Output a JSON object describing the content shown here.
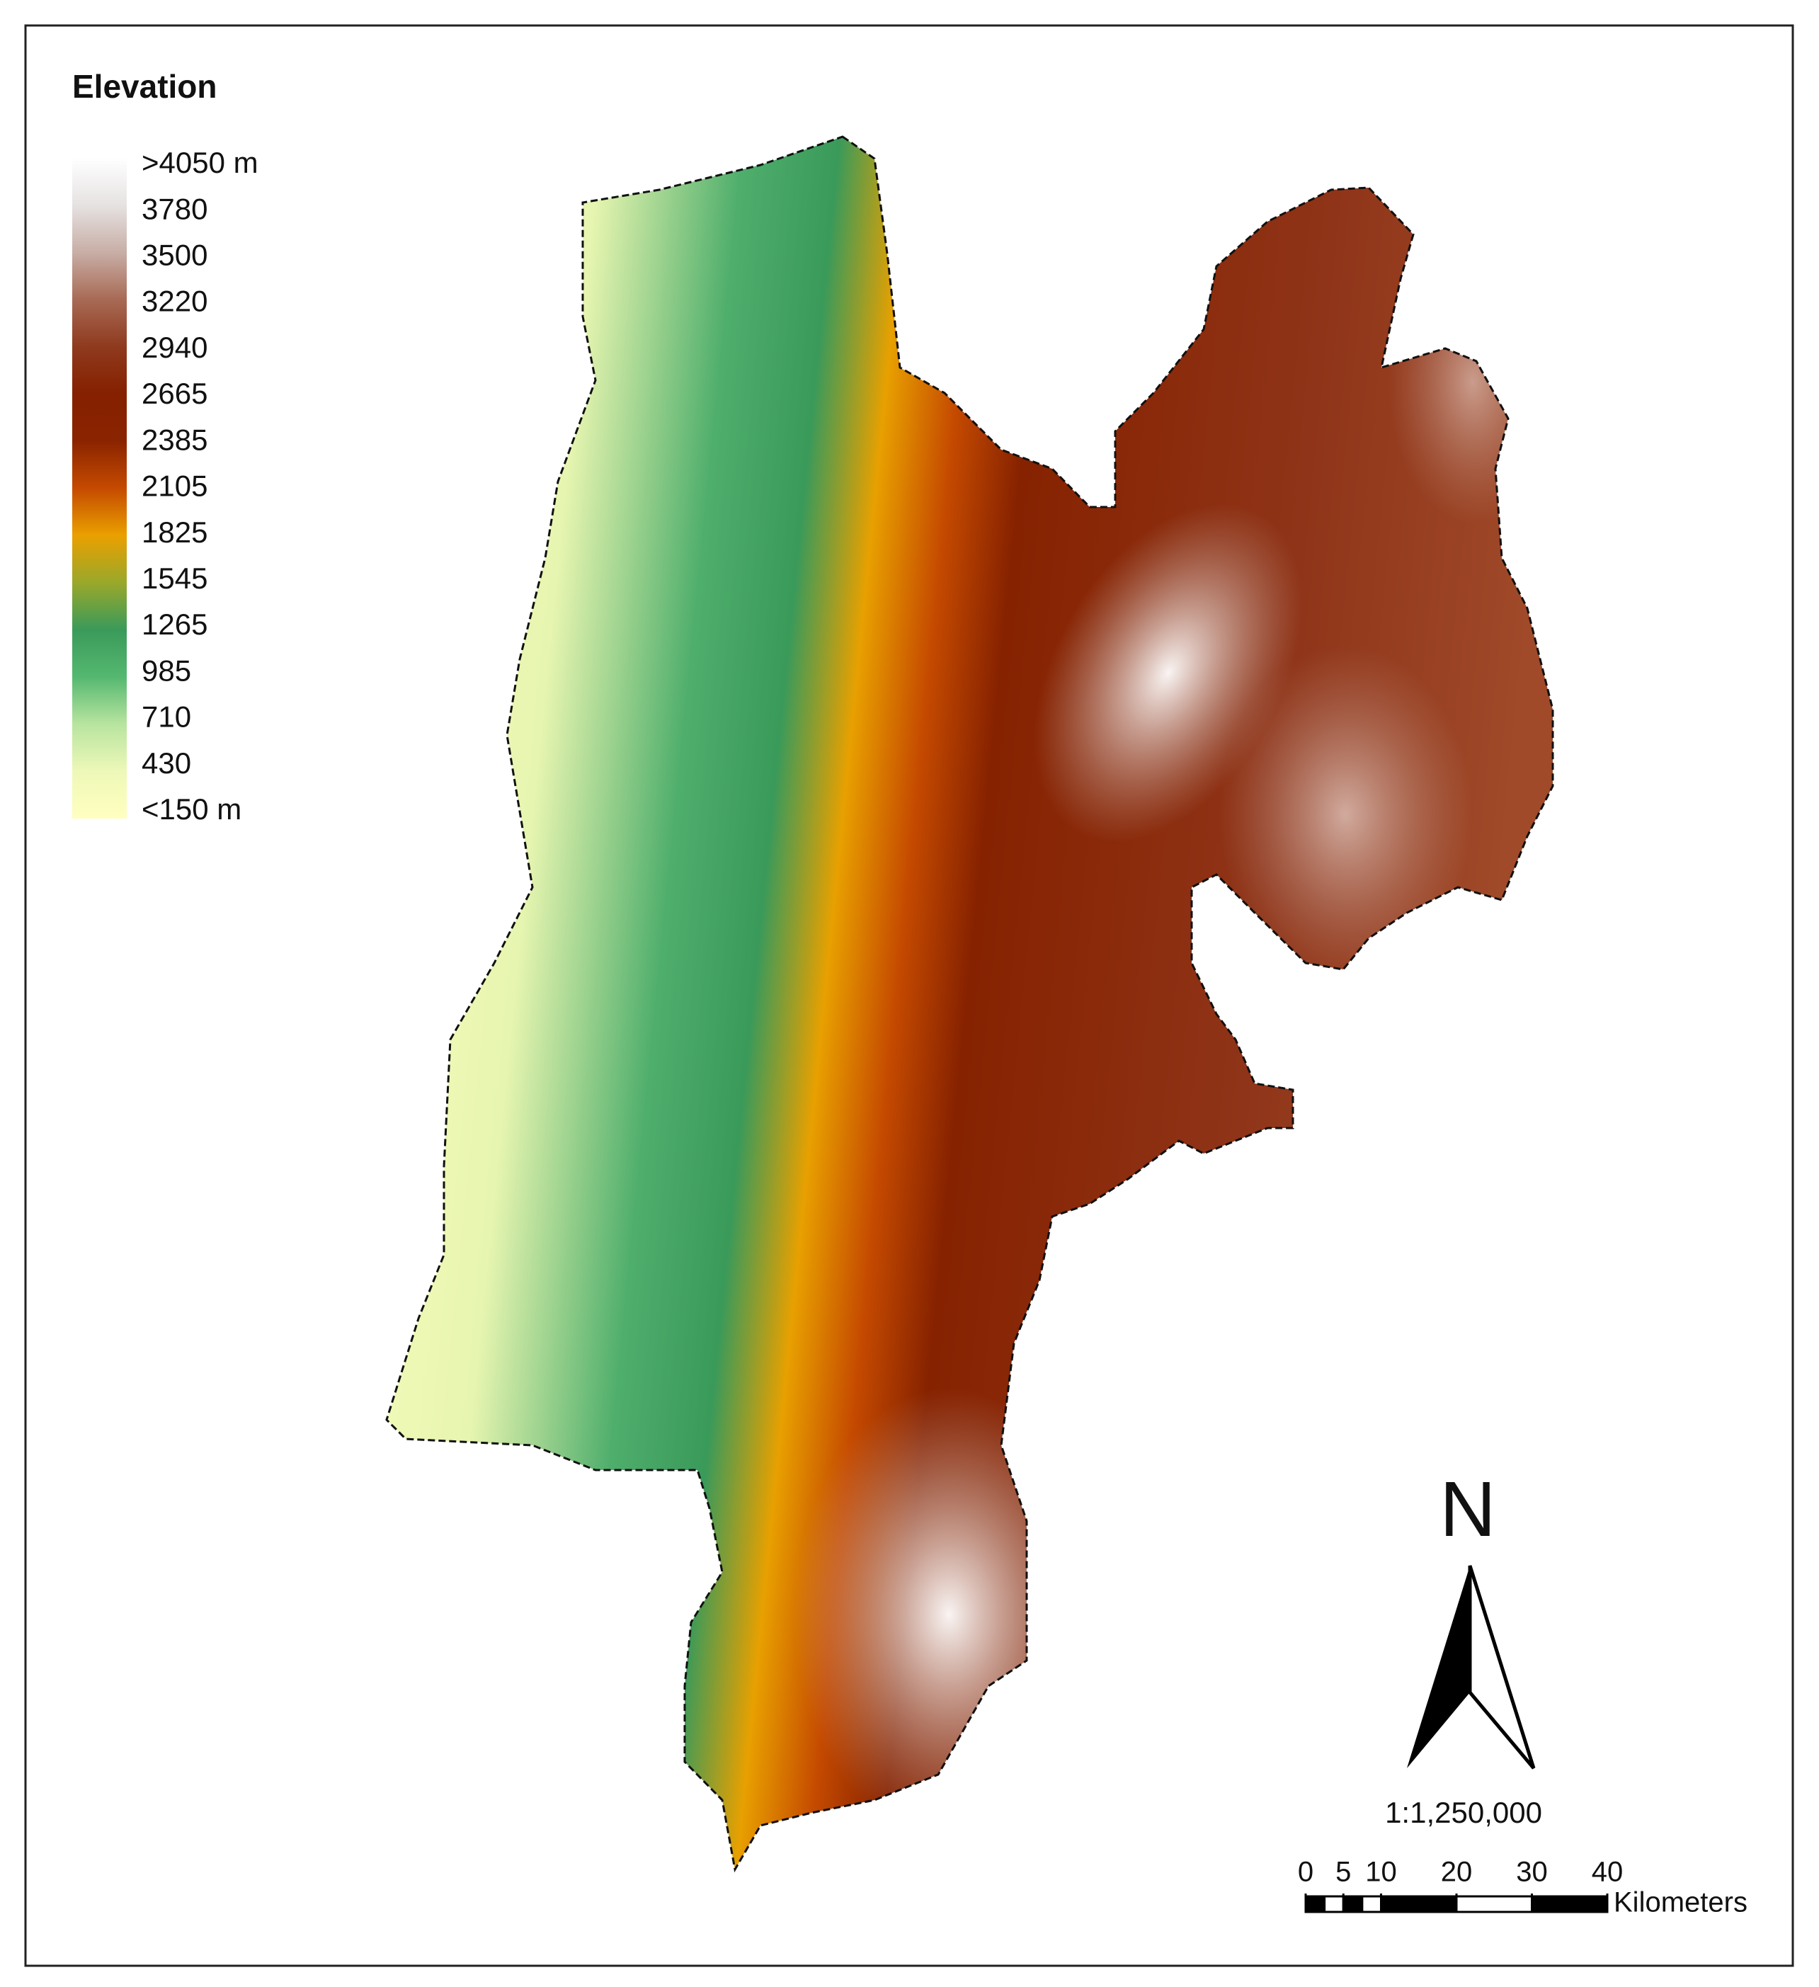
{
  "legend": {
    "title": "Elevation",
    "labels": [
      ">4050 m",
      "3780",
      "3500",
      "3220",
      "2940",
      "2665",
      "2385",
      "2105",
      "1825",
      "1545",
      "1265",
      "985",
      "710",
      "430",
      "<150 m"
    ],
    "colors": [
      "#ffffff",
      "#e6e2e2",
      "#c8aea6",
      "#a86a55",
      "#8f3a1e",
      "#852000",
      "#8a2400",
      "#c54a00",
      "#eaa000",
      "#9aa82a",
      "#3a9a5a",
      "#55b870",
      "#b8e4a0",
      "#eef8b8",
      "#ffffc0"
    ]
  },
  "north_arrow": {
    "label": "N"
  },
  "scale": {
    "ratio": "1:1,250,000",
    "ticks": [
      0,
      5,
      10,
      20,
      30,
      40
    ],
    "unit": "Kilometers"
  }
}
